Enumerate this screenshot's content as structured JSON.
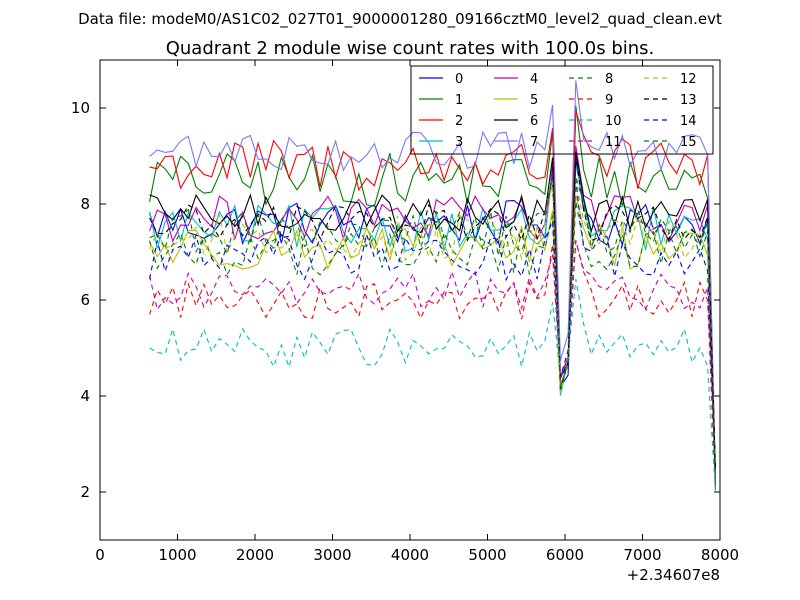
{
  "suptitle": "Data file: modeM0/AS1C02_027T01_9000001280_09166cztM0_level2_quad_clean.evt",
  "chart_data": {
    "type": "line",
    "title": "Quadrant 2 module wise count rates with 100.0s bins.",
    "xlabel": "",
    "ylabel": "",
    "x_offset_label": "+2.34607e8",
    "xlim": [
      0,
      8000
    ],
    "ylim": [
      1,
      11
    ],
    "x_ticks": [
      0,
      1000,
      2000,
      3000,
      4000,
      5000,
      6000,
      7000,
      8000
    ],
    "x_tick_labels": [
      "0",
      "1000",
      "2000",
      "3000",
      "4000",
      "5000",
      "6000",
      "7000",
      "8000"
    ],
    "y_ticks": [
      2,
      4,
      6,
      8,
      10
    ],
    "y_tick_labels": [
      "2",
      "4",
      "6",
      "8",
      "10"
    ],
    "legend_position": "top-right",
    "x_start": 640,
    "x_step": 100,
    "x_end": 7940,
    "series": [
      {
        "name": "0",
        "color": "#0000ff",
        "dash": "solid",
        "base": 7.6,
        "noise": 0.3,
        "dip": 3.9
      },
      {
        "name": "1",
        "color": "#008000",
        "dash": "solid",
        "base": 8.5,
        "noise": 0.35,
        "dip": 4.0
      },
      {
        "name": "2",
        "color": "#ff0000",
        "dash": "solid",
        "base": 8.8,
        "noise": 0.35,
        "dip": 4.1
      },
      {
        "name": "3",
        "color": "#00bfbf",
        "dash": "solid",
        "base": 7.5,
        "noise": 0.3,
        "dip": 4.0
      },
      {
        "name": "4",
        "color": "#bf00bf",
        "dash": "solid",
        "base": 7.7,
        "noise": 0.3,
        "dip": 4.2
      },
      {
        "name": "5",
        "color": "#bfbf00",
        "dash": "solid",
        "base": 7.1,
        "noise": 0.3,
        "dip": 4.0
      },
      {
        "name": "6",
        "color": "#000000",
        "dash": "solid",
        "base": 7.8,
        "noise": 0.25,
        "dip": 4.1
      },
      {
        "name": "7",
        "color": "#7777ff",
        "dash": "solid",
        "base": 9.1,
        "noise": 0.25,
        "dip": 4.5
      },
      {
        "name": "8",
        "color": "#008000",
        "dash": "dashed",
        "base": 7.0,
        "noise": 0.3,
        "dip": 4.0
      },
      {
        "name": "9",
        "color": "#ff0000",
        "dash": "dashed",
        "base": 6.0,
        "noise": 0.25,
        "dip": 4.3
      },
      {
        "name": "10",
        "color": "#00bfbf",
        "dash": "dashed",
        "base": 5.0,
        "noise": 0.25,
        "dip": 4.1
      },
      {
        "name": "11",
        "color": "#bf00bf",
        "dash": "dashed",
        "base": 6.2,
        "noise": 0.25,
        "dip": 4.2
      },
      {
        "name": "12",
        "color": "#bfbf00",
        "dash": "dashed",
        "base": 7.3,
        "noise": 0.3,
        "dip": 4.0
      },
      {
        "name": "13",
        "color": "#000000",
        "dash": "dashed",
        "base": 7.6,
        "noise": 0.25,
        "dip": 4.1
      },
      {
        "name": "14",
        "color": "#0000ff",
        "dash": "dashed",
        "base": 6.9,
        "noise": 0.3,
        "dip": 4.2
      },
      {
        "name": "15",
        "color": "#008000",
        "dash": "dashed",
        "base": 7.4,
        "noise": 0.3,
        "dip": 4.1
      }
    ],
    "final_drop": 2.0
  }
}
